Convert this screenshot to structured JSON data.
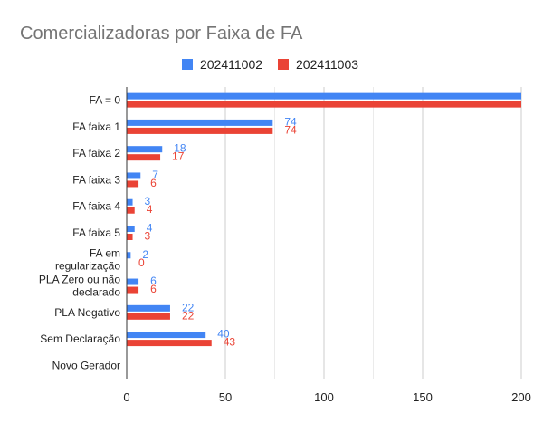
{
  "chart_data": {
    "type": "bar",
    "orientation": "horizontal",
    "title": "Comercializadoras por Faixa de FA",
    "categories": [
      [
        "FA = 0"
      ],
      [
        "FA faixa 1"
      ],
      [
        "FA faixa 2"
      ],
      [
        "FA faixa 3"
      ],
      [
        "FA faixa 4"
      ],
      [
        "FA faixa 5"
      ],
      [
        "FA em",
        "regularização"
      ],
      [
        "PLA Zero ou não",
        "declarado"
      ],
      [
        "PLA Negativo"
      ],
      [
        "Sem Declaração"
      ],
      [
        "Novo Gerador"
      ]
    ],
    "series": [
      {
        "name": "202411002",
        "color": "#4285f4",
        "values": [
          200,
          74,
          18,
          7,
          3,
          4,
          2,
          6,
          22,
          40,
          null
        ],
        "labels": [
          "",
          "74",
          "18",
          "7",
          "3",
          "4",
          "2",
          "6",
          "22",
          "40",
          ""
        ]
      },
      {
        "name": "202411003",
        "color": "#ea4335",
        "values": [
          200,
          74,
          17,
          6,
          4,
          3,
          0,
          6,
          22,
          43,
          null
        ],
        "labels": [
          "",
          "74",
          "17",
          "6",
          "4",
          "3",
          "0",
          "6",
          "22",
          "43",
          ""
        ]
      }
    ],
    "xlim": [
      0,
      200
    ],
    "xticks": [
      0,
      50,
      100,
      150,
      200
    ],
    "xtick_labels": [
      "0",
      "50",
      "100",
      "150",
      "200"
    ],
    "grid": true,
    "legend_position": "top"
  }
}
